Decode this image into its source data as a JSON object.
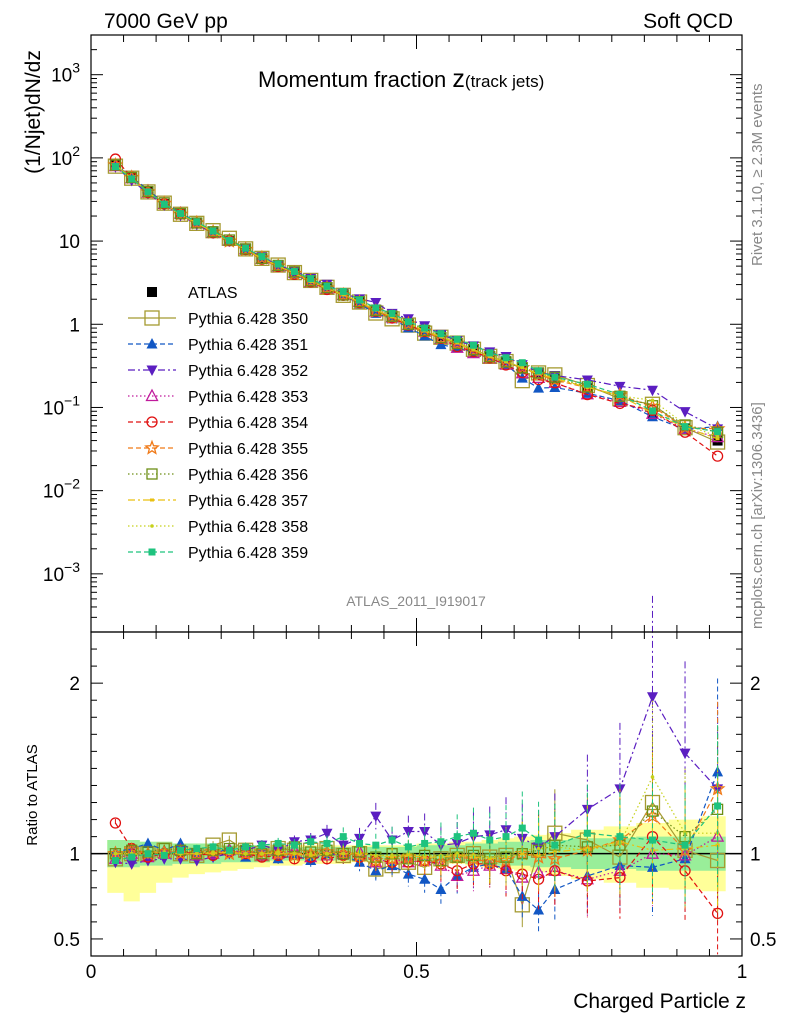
{
  "chart_data": {
    "type": "scatter",
    "header": {
      "left": "7000 GeV pp",
      "right": "Soft QCD"
    },
    "title": {
      "main": "Momentum fraction ",
      "z": "z",
      "sub": "(track jets)"
    },
    "analysis_id": "ATLAS_2011_I919017",
    "side_labels": {
      "rivet": "Rivet 3.1.10, ≥ 2.3M events",
      "mcplots": "mcplots.cern.ch [arXiv:1306.3436]"
    },
    "xlabel": "Charged Particle z",
    "ylabel": "(1/Njet)dN/dz",
    "ratio_ylabel": "Ratio to ATLAS",
    "xlim": [
      0,
      1
    ],
    "ylim": [
      0.0002,
      3000
    ],
    "ratio_ylim": [
      0.4,
      2.3
    ],
    "x_ticks": [
      "0",
      "0.5",
      "1"
    ],
    "y_ticks": [
      {
        "label": "10",
        "exp": "3",
        "value": 1000
      },
      {
        "label": "10",
        "exp": "2",
        "value": 100
      },
      {
        "label": "10",
        "exp": "",
        "value": 10
      },
      {
        "label": "1",
        "exp": "",
        "value": 1
      },
      {
        "label": "10",
        "exp": "−1",
        "value": 0.1
      },
      {
        "label": "10",
        "exp": "−2",
        "value": 0.01
      },
      {
        "label": "10",
        "exp": "−3",
        "value": 0.001
      }
    ],
    "ratio_ticks": [
      "2",
      "1",
      "0.5"
    ],
    "x": [
      0.0375,
      0.0625,
      0.0875,
      0.1125,
      0.1375,
      0.1625,
      0.1875,
      0.2125,
      0.2375,
      0.2625,
      0.2875,
      0.3125,
      0.3375,
      0.3625,
      0.3875,
      0.4125,
      0.4375,
      0.4625,
      0.4875,
      0.5125,
      0.5375,
      0.5625,
      0.5875,
      0.6125,
      0.6375,
      0.6625,
      0.6875,
      0.7125,
      0.7625,
      0.8125,
      0.8625,
      0.9125,
      0.9625
    ],
    "data": [
      82,
      57,
      39,
      28,
      21,
      16.5,
      12.7,
      10,
      7.9,
      6.2,
      5.0,
      4.1,
      3.3,
      2.7,
      2.25,
      1.85,
      1.5,
      1.25,
      1.03,
      0.85,
      0.72,
      0.6,
      0.5,
      0.42,
      0.36,
      0.3,
      0.255,
      0.22,
      0.17,
      0.13,
      0.084,
      0.056,
      0.04
    ],
    "data_band": {
      "stat_low": [
        0.92,
        0.92,
        0.93,
        0.93,
        0.94,
        0.94,
        0.94,
        0.95,
        0.95,
        0.95,
        0.96,
        0.96,
        0.96,
        0.96,
        0.96,
        0.96,
        0.96,
        0.96,
        0.96,
        0.95,
        0.95,
        0.95,
        0.94,
        0.94,
        0.93,
        0.93,
        0.92,
        0.92,
        0.91,
        0.91,
        0.9,
        0.9,
        0.9
      ],
      "stat_high": [
        1.08,
        1.08,
        1.07,
        1.07,
        1.06,
        1.06,
        1.06,
        1.05,
        1.05,
        1.05,
        1.04,
        1.04,
        1.04,
        1.04,
        1.04,
        1.04,
        1.04,
        1.04,
        1.04,
        1.05,
        1.05,
        1.05,
        1.06,
        1.06,
        1.07,
        1.07,
        1.08,
        1.08,
        1.09,
        1.09,
        1.1,
        1.1,
        1.1
      ],
      "total_low": [
        0.77,
        0.72,
        0.77,
        0.83,
        0.86,
        0.88,
        0.89,
        0.9,
        0.91,
        0.92,
        0.93,
        0.93,
        0.94,
        0.94,
        0.94,
        0.95,
        0.95,
        0.95,
        0.95,
        0.95,
        0.94,
        0.94,
        0.93,
        0.92,
        0.91,
        0.9,
        0.89,
        0.87,
        0.85,
        0.83,
        0.8,
        0.79,
        0.78
      ],
      "total_high": [
        1.08,
        1.08,
        1.07,
        1.07,
        1.06,
        1.06,
        1.06,
        1.05,
        1.05,
        1.05,
        1.05,
        1.05,
        1.05,
        1.05,
        1.05,
        1.05,
        1.05,
        1.05,
        1.05,
        1.06,
        1.06,
        1.07,
        1.07,
        1.08,
        1.09,
        1.1,
        1.11,
        1.12,
        1.14,
        1.16,
        1.18,
        1.2,
        1.22
      ]
    },
    "legend": {
      "placement": "middle-left"
    },
    "series": [
      {
        "name": "ATLAS",
        "color": "#000000",
        "marker": "square-filled",
        "line": "none",
        "ratio": [
          1,
          1,
          1,
          1,
          1,
          1,
          1,
          1,
          1,
          1,
          1,
          1,
          1,
          1,
          1,
          1,
          1,
          1,
          1,
          1,
          1,
          1,
          1,
          1,
          1,
          1,
          1,
          1,
          1,
          1,
          1,
          1,
          1
        ]
      },
      {
        "name": "Pythia 6.428 350",
        "color": "#a59a31",
        "marker": "square-open-large",
        "line": "solid",
        "ratio": [
          0.97,
          1.0,
          1.0,
          1.02,
          1.0,
          0.99,
          1.05,
          1.08,
          1.02,
          1.0,
          1.03,
          1.02,
          1.02,
          1.03,
          0.99,
          1.0,
          0.91,
          0.93,
          0.95,
          0.92,
          0.97,
          0.99,
          1.0,
          0.98,
          0.99,
          0.7,
          1.02,
          1.12,
          1.08,
          0.98,
          1.3,
          1.02,
          0.96
        ]
      },
      {
        "name": "Pythia 6.428 351",
        "color": "#1257c4",
        "marker": "triangle-up-filled",
        "line": "dashed",
        "ratio": [
          1.01,
          1.03,
          1.06,
          1.02,
          1.06,
          1.01,
          1.0,
          1.03,
          0.98,
          1.04,
          0.97,
          0.99,
          0.96,
          1.0,
          0.99,
          0.95,
          0.9,
          0.93,
          0.88,
          0.85,
          0.79,
          0.87,
          0.92,
          0.94,
          0.91,
          0.75,
          0.67,
          0.79,
          0.87,
          0.93,
          0.92,
          0.97,
          1.48
        ]
      },
      {
        "name": "Pythia 6.428 352",
        "color": "#5b1ec1",
        "marker": "triangle-down-filled",
        "line": "dashdot",
        "ratio": [
          0.95,
          0.94,
          0.96,
          0.97,
          0.97,
          0.96,
          0.98,
          1.0,
          1.02,
          1.05,
          1.02,
          1.07,
          1.08,
          1.12,
          1.05,
          1.09,
          1.22,
          1.08,
          1.13,
          1.13,
          1.05,
          1.06,
          1.1,
          1.11,
          1.14,
          1.09,
          1.04,
          1.1,
          1.26,
          1.38,
          1.92,
          1.59,
          1.38
        ]
      },
      {
        "name": "Pythia 6.428 353",
        "color": "#c01a9c",
        "marker": "triangle-up-open",
        "line": "dotted",
        "ratio": [
          0.97,
          1.0,
          0.98,
          1.0,
          1.02,
          0.99,
          1.0,
          1.02,
          1.01,
          0.99,
          1.0,
          1.02,
          0.98,
          0.99,
          1.0,
          1.01,
          0.95,
          0.97,
          0.95,
          0.96,
          0.93,
          0.87,
          0.9,
          0.93,
          0.91,
          0.86,
          0.89,
          0.9,
          0.85,
          0.9,
          1.0,
          0.99,
          1.1
        ]
      },
      {
        "name": "Pythia 6.428 354",
        "color": "#e01010",
        "marker": "circle-open",
        "line": "dashed",
        "ratio": [
          1.18,
          1.03,
          0.98,
          1.0,
          1.01,
          1.0,
          0.99,
          1.01,
          1.0,
          0.98,
          0.99,
          0.97,
          0.98,
          0.97,
          0.99,
          0.98,
          0.96,
          0.95,
          0.95,
          0.96,
          0.94,
          0.9,
          0.94,
          0.94,
          0.9,
          0.88,
          0.85,
          0.9,
          0.84,
          0.86,
          1.1,
          0.9,
          0.65
        ]
      },
      {
        "name": "Pythia 6.428 355",
        "color": "#f07a18",
        "marker": "star-open",
        "line": "dashed",
        "ratio": [
          1.0,
          1.02,
          1.0,
          1.01,
          1.0,
          1.0,
          1.01,
          1.0,
          1.0,
          1.01,
          1.0,
          0.99,
          1.0,
          1.01,
          1.0,
          0.99,
          0.96,
          0.97,
          0.98,
          0.96,
          0.95,
          0.98,
          0.97,
          0.95,
          0.96,
          1.0,
          0.98,
          0.97,
          1.02,
          1.08,
          1.22,
          1.02,
          1.38
        ]
      },
      {
        "name": "Pythia 6.428 356",
        "color": "#6d8f16",
        "marker": "square-open",
        "line": "dotted",
        "ratio": [
          1.0,
          1.02,
          1.01,
          1.03,
          1.02,
          1.0,
          1.02,
          1.03,
          1.02,
          1.0,
          1.02,
          1.04,
          1.01,
          1.02,
          1.0,
          1.01,
          0.98,
          1.0,
          0.97,
          0.99,
          0.96,
          0.98,
          0.99,
          0.97,
          0.98,
          1.0,
          1.02,
          1.05,
          1.04,
          1.05,
          1.25,
          1.1,
          1.26
        ]
      },
      {
        "name": "Pythia 6.428 357",
        "color": "#e9c012",
        "marker": "dash-point",
        "line": "dashdot",
        "ratio": [
          1.0,
          1.0,
          0.99,
          1.0,
          1.0,
          1.0,
          1.0,
          1.01,
          1.0,
          1.0,
          1.0,
          1.0,
          0.99,
          1.0,
          1.0,
          1.0,
          0.99,
          0.98,
          0.99,
          0.98,
          0.98,
          0.99,
          0.98,
          0.97,
          0.98,
          1.0,
          0.99,
          1.01,
          1.03,
          1.07,
          1.02,
          1.03,
          1.05
        ]
      },
      {
        "name": "Pythia 6.428 358",
        "color": "#c6d11b",
        "marker": "dot",
        "line": "dotted",
        "ratio": [
          1.0,
          1.0,
          1.0,
          1.01,
          1.0,
          1.0,
          1.01,
          1.0,
          1.0,
          1.0,
          1.01,
          1.0,
          1.0,
          1.0,
          1.0,
          1.01,
          0.99,
          0.99,
          1.0,
          0.99,
          0.99,
          1.0,
          0.99,
          0.98,
          0.99,
          1.02,
          1.03,
          1.04,
          1.02,
          1.06,
          1.45,
          1.12,
          1.12
        ]
      },
      {
        "name": "Pythia 6.428 359",
        "color": "#1ec37e",
        "marker": "square-filled-small",
        "line": "dashed",
        "ratio": [
          0.96,
          0.98,
          1.0,
          0.99,
          1.02,
          1.03,
          1.04,
          1.02,
          1.04,
          1.05,
          1.06,
          1.05,
          1.07,
          1.06,
          1.1,
          1.06,
          1.05,
          1.08,
          1.04,
          1.06,
          1.07,
          1.1,
          1.12,
          1.08,
          1.1,
          1.15,
          1.08,
          1.05,
          1.12,
          1.1,
          1.08,
          1.05,
          1.28
        ]
      }
    ]
  }
}
